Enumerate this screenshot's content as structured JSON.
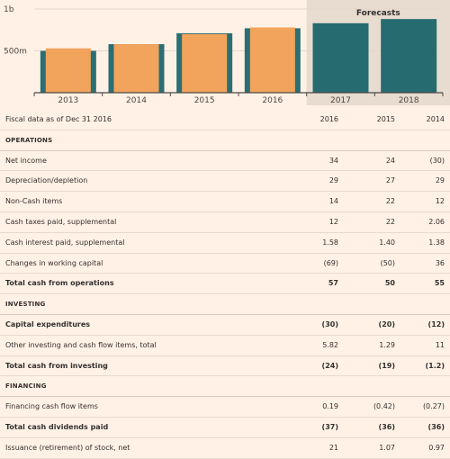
{
  "chart_data": {
    "type": "bar",
    "categories": [
      "2013",
      "2014",
      "2015",
      "2016",
      "2017",
      "2018"
    ],
    "series": [
      {
        "values": [
          0.53,
          0.58,
          0.7,
          0.78,
          0.83,
          0.88
        ]
      },
      {
        "values": [
          0.5,
          0.58,
          0.71,
          0.77,
          null,
          null
        ]
      }
    ],
    "forecast_categories": [
      "2017",
      "2018"
    ],
    "forecast_label": "Forecasts",
    "y_ticks": [
      {
        "value": 0.5,
        "label": "500m"
      },
      {
        "value": 1.0,
        "label": "1b"
      }
    ],
    "ylim": [
      0,
      1.0
    ],
    "colors": {
      "actual_bar": "#f2a35c",
      "actual_bar_behind": "#2a6f74",
      "forecast_bar": "#266b70",
      "forecast_band": "#e8dcd0",
      "axis": "#4d4845",
      "grid": "#e3d6ca"
    }
  },
  "table": {
    "header": {
      "label": "Fiscal data as of Dec 31 2016",
      "years": [
        "2016",
        "2015",
        "2014"
      ]
    },
    "rows": [
      {
        "kind": "section",
        "label": "OPERATIONS"
      },
      {
        "kind": "row",
        "label": "Net income",
        "values": [
          "34",
          "24",
          "(30)"
        ]
      },
      {
        "kind": "row",
        "label": "Depreciation/depletion",
        "values": [
          "29",
          "27",
          "29"
        ]
      },
      {
        "kind": "row",
        "label": "Non-Cash items",
        "values": [
          "14",
          "22",
          "12"
        ]
      },
      {
        "kind": "row",
        "label": "Cash taxes paid, supplemental",
        "values": [
          "12",
          "22",
          "2.06"
        ]
      },
      {
        "kind": "row",
        "label": "Cash interest paid, supplemental",
        "values": [
          "1.58",
          "1.40",
          "1.38"
        ]
      },
      {
        "kind": "row",
        "label": "Changes in working capital",
        "values": [
          "(69)",
          "(50)",
          "36"
        ]
      },
      {
        "kind": "total",
        "label": "Total cash from operations",
        "values": [
          "57",
          "50",
          "55"
        ]
      },
      {
        "kind": "section",
        "label": "INVESTING"
      },
      {
        "kind": "total",
        "label": "Capital expenditures",
        "values": [
          "(30)",
          "(20)",
          "(12)"
        ]
      },
      {
        "kind": "row",
        "label": "Other investing and cash flow items, total",
        "values": [
          "5.82",
          "1.29",
          "11"
        ]
      },
      {
        "kind": "total",
        "label": "Total cash from investing",
        "values": [
          "(24)",
          "(19)",
          "(1.2)"
        ]
      },
      {
        "kind": "section",
        "label": "FINANCING"
      },
      {
        "kind": "row",
        "label": "Financing cash flow items",
        "values": [
          "0.19",
          "(0.42)",
          "(0.27)"
        ]
      },
      {
        "kind": "total",
        "label": "Total cash dividends paid",
        "values": [
          "(37)",
          "(36)",
          "(36)"
        ]
      },
      {
        "kind": "row",
        "label": "Issuance (retirement) of stock, net",
        "values": [
          "21",
          "1.07",
          "0.97"
        ]
      }
    ]
  }
}
